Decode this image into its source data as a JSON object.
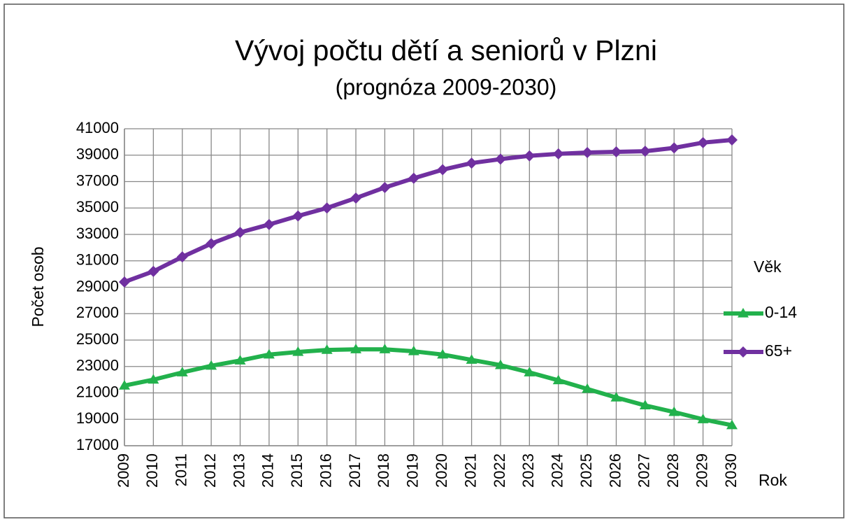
{
  "chart_data": {
    "type": "line",
    "title": "Vývoj počtu dětí a seniorů v Plzni",
    "subtitle": "(prognóza 2009-2030)",
    "x_label": "Rok",
    "y_label": "Počet osob",
    "legend_title": "Věk",
    "categories": [
      "2009",
      "2010",
      "2011",
      "2012",
      "2013",
      "2014",
      "2015",
      "2016",
      "2017",
      "2018",
      "2019",
      "2020",
      "2021",
      "2022",
      "2023",
      "2024",
      "2025",
      "2026",
      "2027",
      "2028",
      "2029",
      "2030"
    ],
    "series": [
      {
        "name": "0-14",
        "color": "#22b14c",
        "marker": "triangle",
        "values": [
          21550,
          22000,
          22550,
          23050,
          23450,
          23900,
          24100,
          24250,
          24300,
          24300,
          24150,
          23900,
          23500,
          23100,
          22550,
          21950,
          21300,
          20650,
          20050,
          19550,
          19000,
          18550
        ]
      },
      {
        "name": "65+",
        "color": "#7030a0",
        "marker": "diamond",
        "values": [
          29400,
          30200,
          31300,
          32300,
          33150,
          33750,
          34400,
          35000,
          35750,
          36550,
          37250,
          37900,
          38400,
          38700,
          38950,
          39100,
          39200,
          39250,
          39300,
          39550,
          39950,
          40150
        ]
      }
    ],
    "ylim": [
      17000,
      41000
    ],
    "yticks": [
      17000,
      19000,
      21000,
      23000,
      25000,
      27000,
      29000,
      31000,
      33000,
      35000,
      37000,
      39000,
      41000
    ],
    "grid": true,
    "legend_position": "right"
  }
}
